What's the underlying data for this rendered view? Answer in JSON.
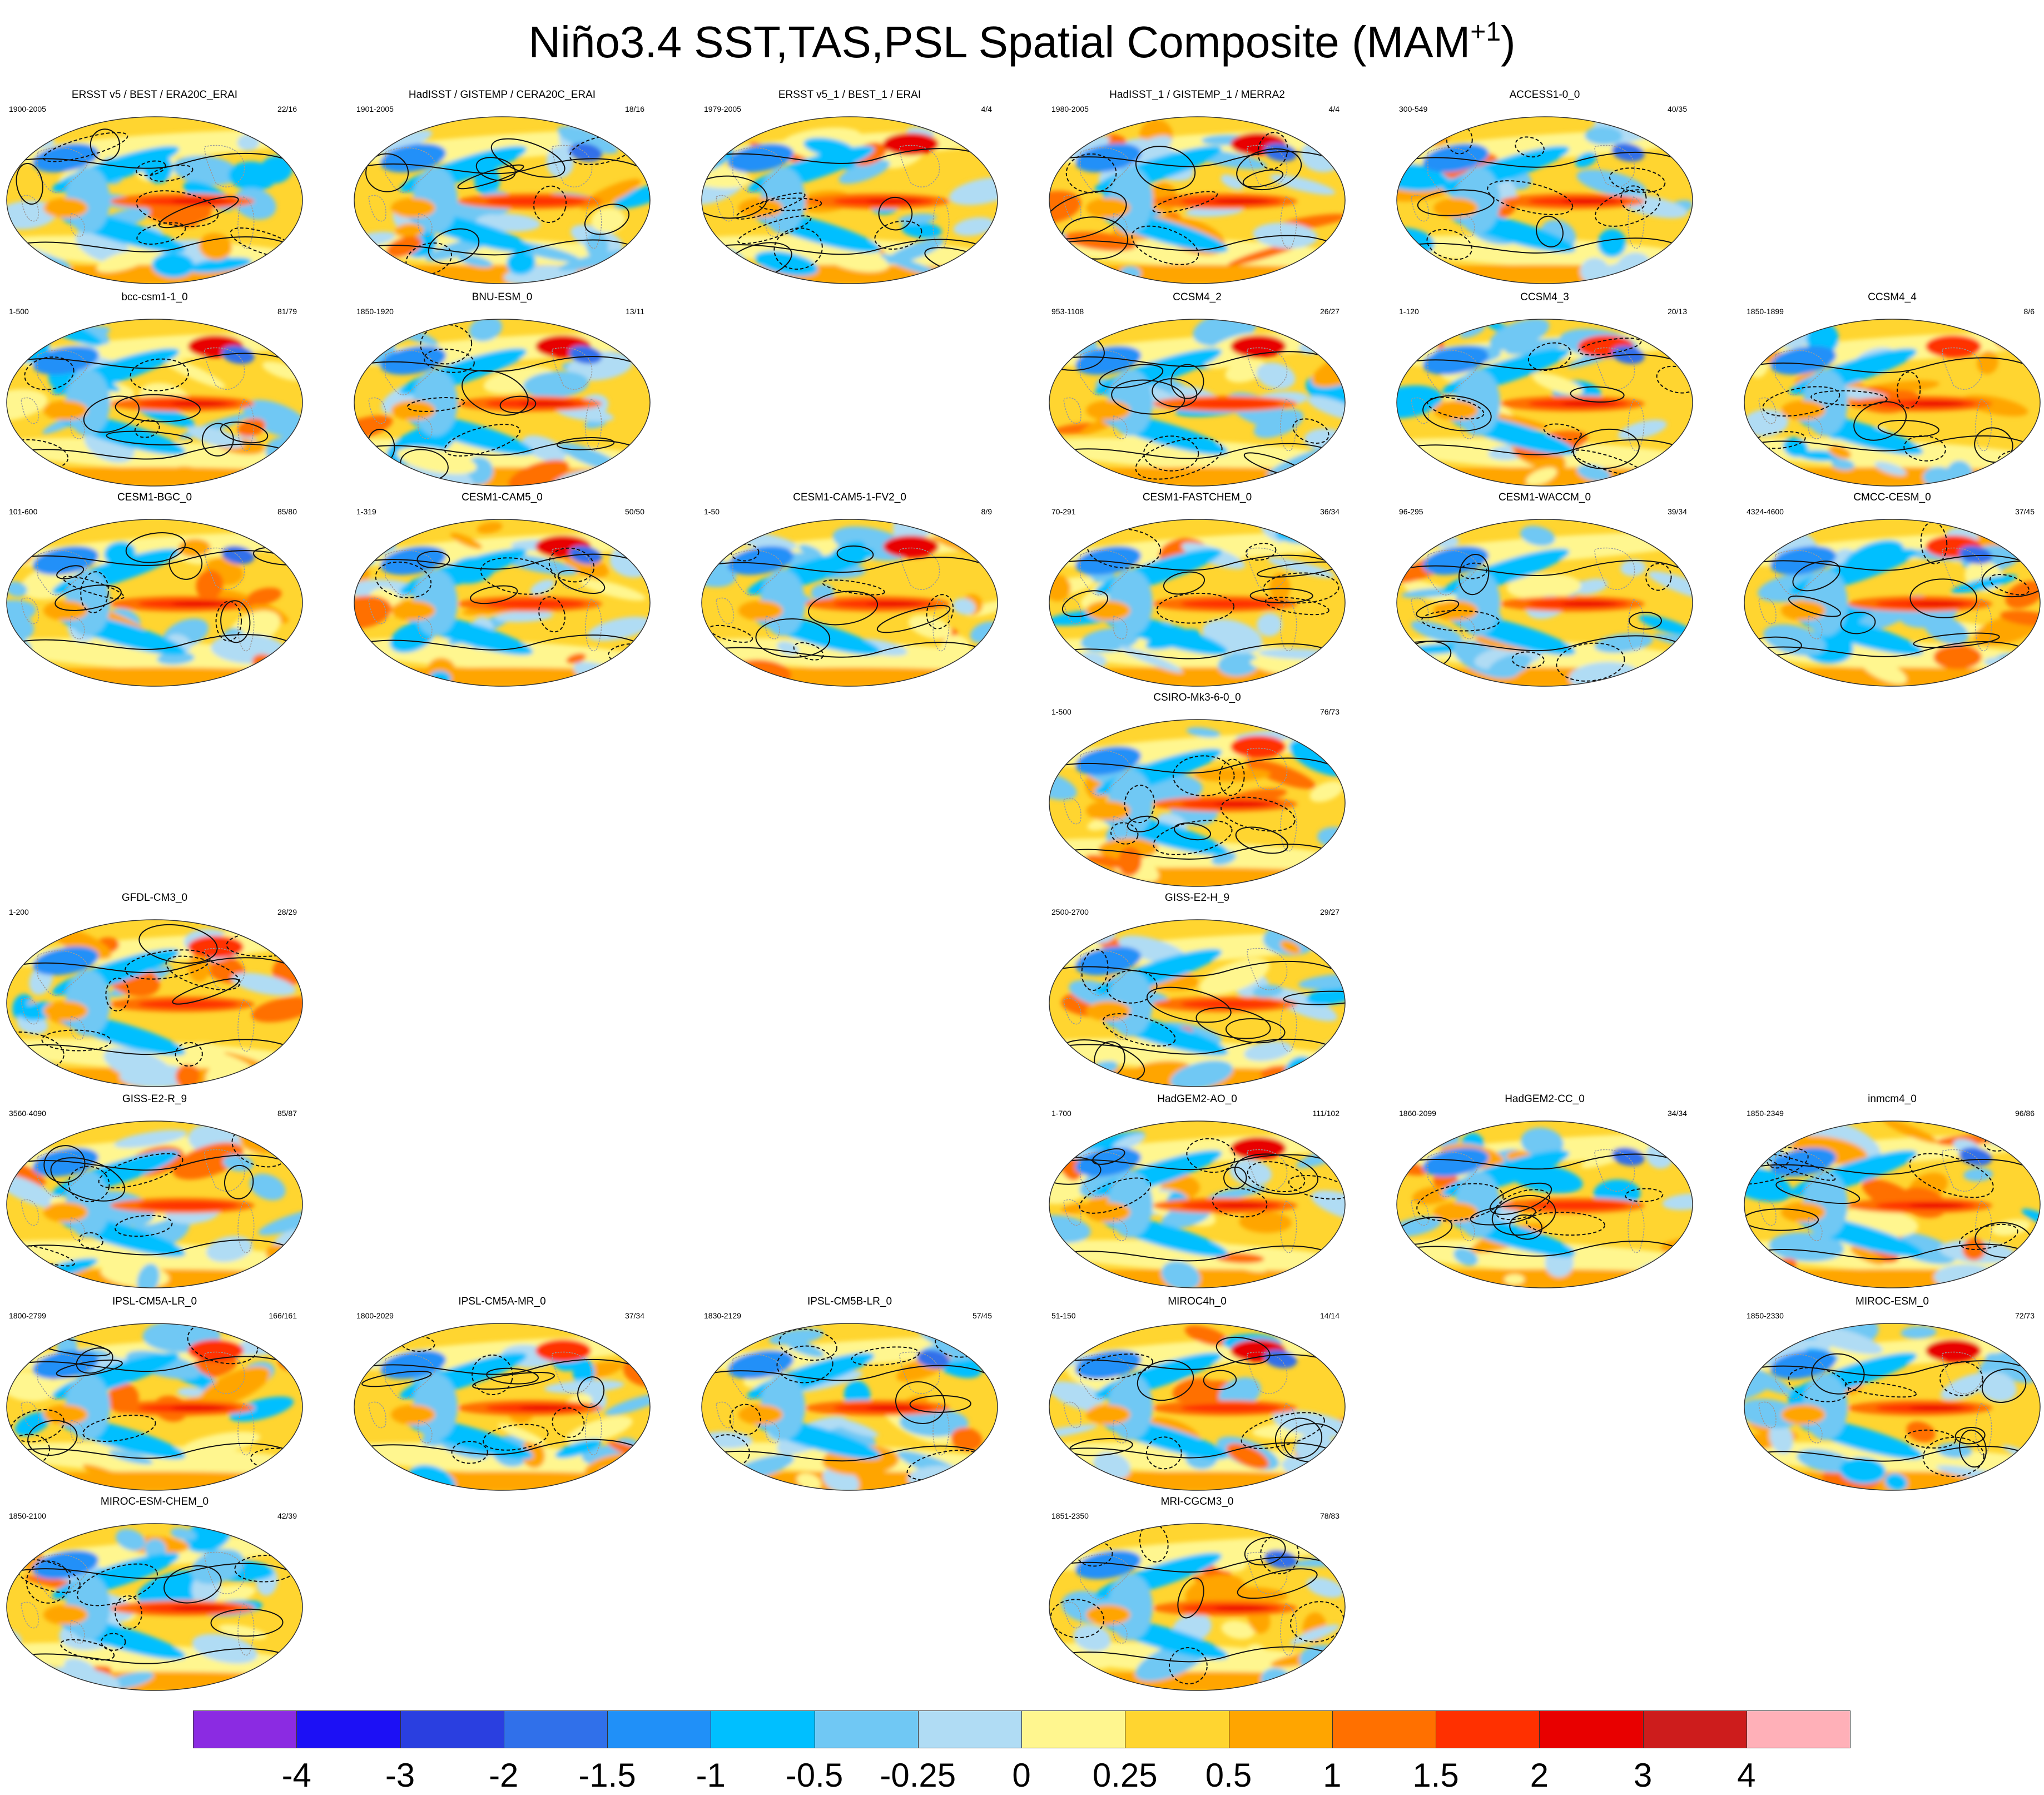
{
  "title": {
    "main": "Niño3.4 SST,TAS,PSL Spatial Composite (MAM",
    "sup": "+1",
    "close": ")"
  },
  "panels": [
    {
      "title": "ERSST v5 / BEST / ERA20C_ERAI",
      "years": "1900-2005",
      "count": "22/16",
      "col": 0,
      "row": 0,
      "seed": 11
    },
    {
      "title": "HadISST / GISTEMP / CERA20C_ERAI",
      "years": "1901-2005",
      "count": "18/16",
      "col": 1,
      "row": 0,
      "seed": 12
    },
    {
      "title": "ERSST v5_1 / BEST_1 / ERAI",
      "years": "1979-2005",
      "count": "4/4",
      "col": 2,
      "row": 0,
      "seed": 13
    },
    {
      "title": "HadISST_1 / GISTEMP_1 / MERRA2",
      "years": "1980-2005",
      "count": "4/4",
      "col": 3,
      "row": 0,
      "seed": 14
    },
    {
      "title": "ACCESS1-0_0",
      "years": "300-549",
      "count": "40/35",
      "col": 4,
      "row": 0,
      "seed": 15
    },
    {
      "title": "bcc-csm1-1_0",
      "years": "1-500",
      "count": "81/79",
      "col": 0,
      "row": 1,
      "seed": 21
    },
    {
      "title": "BNU-ESM_0",
      "years": "1850-1920",
      "count": "13/11",
      "col": 1,
      "row": 1,
      "seed": 22
    },
    {
      "title": "CCSM4_2",
      "years": "953-1108",
      "count": "26/27",
      "col": 3,
      "row": 1,
      "seed": 24
    },
    {
      "title": "CCSM4_3",
      "years": "1-120",
      "count": "20/13",
      "col": 4,
      "row": 1,
      "seed": 25
    },
    {
      "title": "CCSM4_4",
      "years": "1850-1899",
      "count": "8/6",
      "col": 5,
      "row": 1,
      "seed": 26
    },
    {
      "title": "CESM1-BGC_0",
      "years": "101-600",
      "count": "85/80",
      "col": 0,
      "row": 2,
      "seed": 31
    },
    {
      "title": "CESM1-CAM5_0",
      "years": "1-319",
      "count": "50/50",
      "col": 1,
      "row": 2,
      "seed": 32
    },
    {
      "title": "CESM1-CAM5-1-FV2_0",
      "years": "1-50",
      "count": "8/9",
      "col": 2,
      "row": 2,
      "seed": 33
    },
    {
      "title": "CESM1-FASTCHEM_0",
      "years": "70-291",
      "count": "36/34",
      "col": 3,
      "row": 2,
      "seed": 34
    },
    {
      "title": "CESM1-WACCM_0",
      "years": "96-295",
      "count": "39/34",
      "col": 4,
      "row": 2,
      "seed": 35
    },
    {
      "title": "CMCC-CESM_0",
      "years": "4324-4600",
      "count": "37/45",
      "col": 5,
      "row": 2,
      "seed": 36
    },
    {
      "title": "CSIRO-Mk3-6-0_0",
      "years": "1-500",
      "count": "76/73",
      "col": 3,
      "row": 3,
      "seed": 44
    },
    {
      "title": "GFDL-CM3_0",
      "years": "1-200",
      "count": "28/29",
      "col": 0,
      "row": 4,
      "seed": 51
    },
    {
      "title": "GISS-E2-H_9",
      "years": "2500-2700",
      "count": "29/27",
      "col": 3,
      "row": 4,
      "seed": 54
    },
    {
      "title": "GISS-E2-R_9",
      "years": "3560-4090",
      "count": "85/87",
      "col": 0,
      "row": 5,
      "seed": 61
    },
    {
      "title": "HadGEM2-AO_0",
      "years": "1-700",
      "count": "111/102",
      "col": 3,
      "row": 5,
      "seed": 64
    },
    {
      "title": "HadGEM2-CC_0",
      "years": "1860-2099",
      "count": "34/34",
      "col": 4,
      "row": 5,
      "seed": 65
    },
    {
      "title": "inmcm4_0",
      "years": "1850-2349",
      "count": "96/86",
      "col": 5,
      "row": 5,
      "seed": 66
    },
    {
      "title": "IPSL-CM5A-LR_0",
      "years": "1800-2799",
      "count": "166/161",
      "col": 0,
      "row": 6,
      "seed": 71
    },
    {
      "title": "IPSL-CM5A-MR_0",
      "years": "1800-2029",
      "count": "37/34",
      "col": 1,
      "row": 6,
      "seed": 72
    },
    {
      "title": "IPSL-CM5B-LR_0",
      "years": "1830-2129",
      "count": "57/45",
      "col": 2,
      "row": 6,
      "seed": 73
    },
    {
      "title": "MIROC4h_0",
      "years": "51-150",
      "count": "14/14",
      "col": 3,
      "row": 6,
      "seed": 74
    },
    {
      "title": "MIROC-ESM_0",
      "years": "1850-2330",
      "count": "72/73",
      "col": 5,
      "row": 6,
      "seed": 76
    },
    {
      "title": "MIROC-ESM-CHEM_0",
      "years": "1850-2100",
      "count": "42/39",
      "col": 0,
      "row": 7,
      "seed": 81
    },
    {
      "title": "MRI-CGCM3_0",
      "years": "1851-2350",
      "count": "78/83",
      "col": 3,
      "row": 7,
      "seed": 84
    }
  ],
  "colorbar": {
    "labels": [
      "-4",
      "-3",
      "-2",
      "-1.5",
      "-1",
      "-0.5",
      "-0.25",
      "0",
      "0.25",
      "0.5",
      "1",
      "1.5",
      "2",
      "3",
      "4"
    ],
    "colors": [
      "#8b2be2",
      "#1c10f5",
      "#2a3fe0",
      "#3070ea",
      "#2090f8",
      "#00bfff",
      "#70c8f4",
      "#b0dcf4",
      "#fff68f",
      "#ffd530",
      "#ffa500",
      "#ff7000",
      "#ff3000",
      "#e80000",
      "#cd1c1c",
      "#ffb0b8"
    ]
  }
}
